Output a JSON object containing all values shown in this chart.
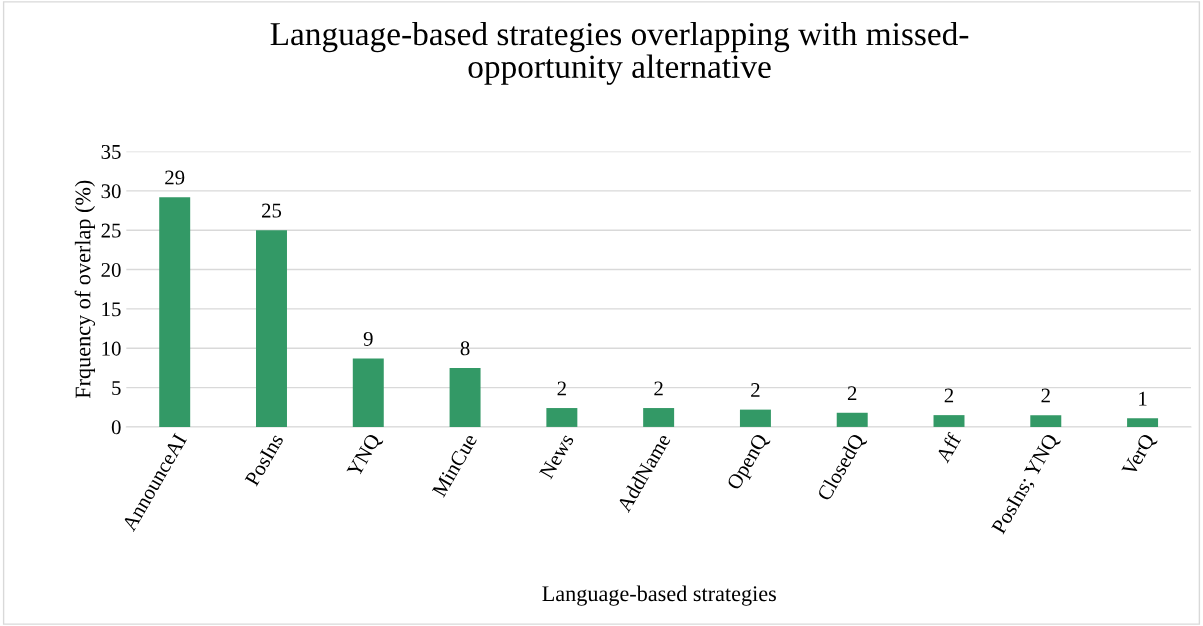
{
  "chart_data": {
    "type": "bar",
    "title": "Language-based strategies overlapping with missed-\nopportunity alternative",
    "xlabel": "Language-based strategies",
    "ylabel": "Frquency of overlap (%)",
    "categories": [
      "AnnounceAI",
      "PosIns",
      "YNQ",
      "MinCue",
      "News",
      "AddName",
      "OpenQ",
      "ClosedQ",
      "Aff",
      "PosIns; YNQ",
      "VerQ"
    ],
    "values": [
      29.2,
      25.0,
      8.7,
      7.5,
      2.4,
      2.4,
      2.2,
      1.8,
      1.5,
      1.5,
      1.1
    ],
    "value_labels": [
      "29",
      "25",
      "9",
      "8",
      "2",
      "2",
      "2",
      "2",
      "2",
      "2",
      "1"
    ],
    "color": "#339966",
    "ylim": [
      0,
      35
    ],
    "yticks": [
      0,
      5,
      10,
      15,
      20,
      25,
      30,
      35
    ],
    "grid": "y",
    "legend": false
  }
}
